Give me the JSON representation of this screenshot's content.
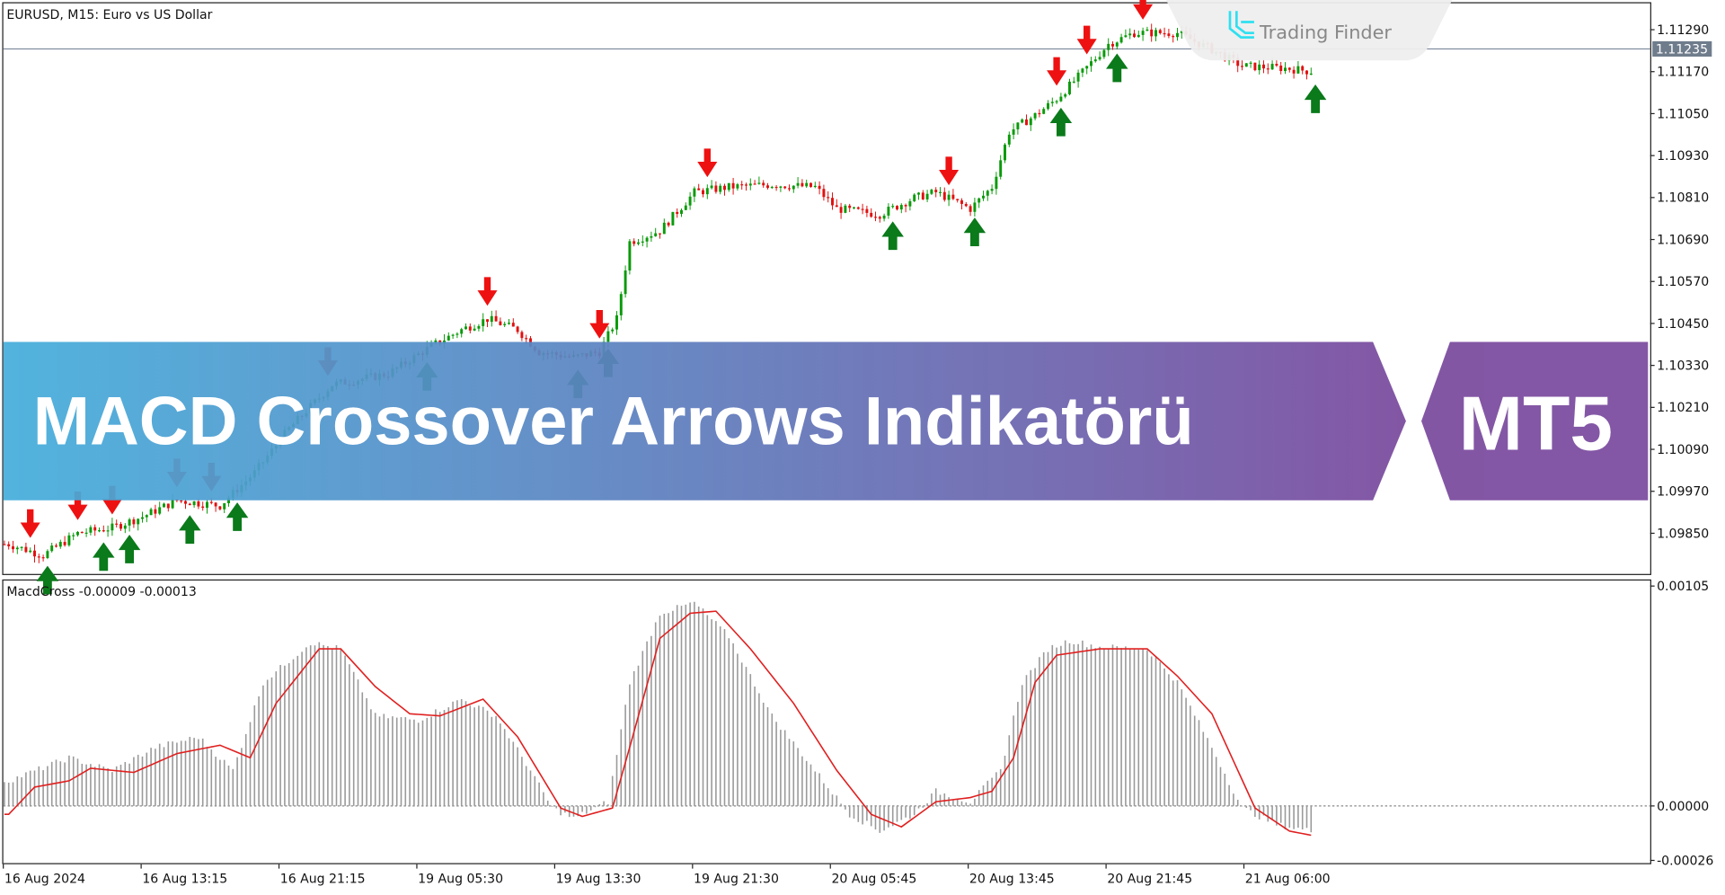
{
  "header": {
    "title": "EURUSD, M15:  Euro vs US Dollar"
  },
  "logo": {
    "text": "Trading Finder"
  },
  "banner": {
    "title": "MACD Crossover Arrows Indikatörü",
    "badge": "MT5",
    "color_left": "#45aedb",
    "color_right": "#7a4a9e"
  },
  "colors": {
    "bull": "#0a9a0a",
    "bear": "#e01010",
    "buy_arrow": "#0a7a1a",
    "sell_arrow": "#ee1111",
    "histogram": "#9a9a9a",
    "signal": "#e02020",
    "price_line": "#7a869a"
  },
  "chart_data": [
    {
      "type": "candlestick",
      "symbol": "EURUSD",
      "timeframe": "M15",
      "ylim": [
        1.0978,
        1.1135
      ],
      "yticks": [
        "1.11290",
        "1.11170",
        "1.11050",
        "1.10930",
        "1.10810",
        "1.10690",
        "1.10570",
        "1.10450",
        "1.10330",
        "1.10210",
        "1.10090",
        "1.09970",
        "1.09850"
      ],
      "current_price": "1.11235",
      "xticks": [
        "16 Aug 2024",
        "16 Aug 13:15",
        "16 Aug 21:15",
        "19 Aug 05:30",
        "19 Aug 13:30",
        "19 Aug 21:30",
        "20 Aug 05:45",
        "20 Aug 13:45",
        "20 Aug 21:45",
        "21 Aug 06:00"
      ],
      "close_path": [
        [
          1,
          1.09819
        ],
        [
          9,
          1.09787
        ],
        [
          17,
          1.0985
        ],
        [
          25,
          1.09866
        ],
        [
          32,
          1.09897
        ],
        [
          40,
          1.09944
        ],
        [
          50,
          1.09929
        ],
        [
          58,
          1.10023
        ],
        [
          66,
          1.10149
        ],
        [
          76,
          1.10275
        ],
        [
          89,
          1.10306
        ],
        [
          99,
          1.10385
        ],
        [
          106,
          1.10432
        ],
        [
          112,
          1.10463
        ],
        [
          119,
          1.10432
        ],
        [
          124,
          1.10369
        ],
        [
          132,
          1.10353
        ],
        [
          138,
          1.10369
        ],
        [
          142,
          1.10463
        ],
        [
          145,
          1.10683
        ],
        [
          152,
          1.10715
        ],
        [
          160,
          1.10825
        ],
        [
          168,
          1.1084
        ],
        [
          178,
          1.10847
        ],
        [
          188,
          1.1084
        ],
        [
          193,
          1.10778
        ],
        [
          203,
          1.10762
        ],
        [
          211,
          1.10809
        ],
        [
          216,
          1.10825
        ],
        [
          224,
          1.10778
        ],
        [
          229,
          1.1084
        ],
        [
          233,
          1.10998
        ],
        [
          239,
          1.11045
        ],
        [
          244,
          1.11092
        ],
        [
          249,
          1.11155
        ],
        [
          256,
          1.11249
        ],
        [
          262,
          1.11281
        ],
        [
          272,
          1.11281
        ],
        [
          280,
          1.11233
        ],
        [
          287,
          1.11186
        ],
        [
          297,
          1.1118
        ],
        [
          303,
          1.11171
        ]
      ],
      "arrows": [
        {
          "bar": 6,
          "type": "sell"
        },
        {
          "bar": 17,
          "type": "sell"
        },
        {
          "bar": 25,
          "type": "sell"
        },
        {
          "bar": 40,
          "type": "sell"
        },
        {
          "bar": 48,
          "type": "sell"
        },
        {
          "bar": 75,
          "type": "sell"
        },
        {
          "bar": 112,
          "type": "sell"
        },
        {
          "bar": 138,
          "type": "sell"
        },
        {
          "bar": 163,
          "type": "sell"
        },
        {
          "bar": 219,
          "type": "sell"
        },
        {
          "bar": 244,
          "type": "sell"
        },
        {
          "bar": 251,
          "type": "sell"
        },
        {
          "bar": 264,
          "type": "sell"
        },
        {
          "bar": 10,
          "type": "buy"
        },
        {
          "bar": 23,
          "type": "buy"
        },
        {
          "bar": 29,
          "type": "buy"
        },
        {
          "bar": 43,
          "type": "buy"
        },
        {
          "bar": 54,
          "type": "buy"
        },
        {
          "bar": 98,
          "type": "buy"
        },
        {
          "bar": 133,
          "type": "buy"
        },
        {
          "bar": 140,
          "type": "buy"
        },
        {
          "bar": 206,
          "type": "buy"
        },
        {
          "bar": 225,
          "type": "buy"
        },
        {
          "bar": 245,
          "type": "buy"
        },
        {
          "bar": 258,
          "type": "buy"
        },
        {
          "bar": 304,
          "type": "buy"
        }
      ]
    },
    {
      "type": "bar+line",
      "name": "MacdCross",
      "label": "MacdCross -0.00009 -0.00013",
      "ylim": [
        -0.00026,
        0.00105
      ],
      "yticks": [
        "0.00105",
        "0.00000",
        "-0.00026"
      ],
      "histogram_path": [
        [
          1,
          0.00012
        ],
        [
          15,
          0.00023
        ],
        [
          25,
          0.00017
        ],
        [
          35,
          0.00028
        ],
        [
          45,
          0.00033
        ],
        [
          53,
          0.00017
        ],
        [
          60,
          0.00059
        ],
        [
          71,
          0.00078
        ],
        [
          78,
          0.00075
        ],
        [
          86,
          0.00043
        ],
        [
          96,
          0.00041
        ],
        [
          106,
          0.00051
        ],
        [
          114,
          0.00043
        ],
        [
          122,
          0.00017
        ],
        [
          127,
          -1e-05
        ],
        [
          132,
          -6e-05
        ],
        [
          140,
          2e-05
        ],
        [
          145,
          0.00059
        ],
        [
          152,
          0.00092
        ],
        [
          160,
          0.00097
        ],
        [
          168,
          0.00081
        ],
        [
          178,
          0.00043
        ],
        [
          188,
          0.00017
        ],
        [
          196,
          -4e-05
        ],
        [
          203,
          -0.00012
        ],
        [
          211,
          -4e-05
        ],
        [
          216,
          7e-05
        ],
        [
          224,
          2e-05
        ],
        [
          231,
          0.00017
        ],
        [
          236,
          0.00059
        ],
        [
          242,
          0.00075
        ],
        [
          247,
          0.00079
        ],
        [
          254,
          0.00076
        ],
        [
          265,
          0.00075
        ],
        [
          272,
          0.00059
        ],
        [
          280,
          0.00028
        ],
        [
          287,
          -1e-05
        ],
        [
          295,
          -9e-05
        ],
        [
          303,
          -0.00012
        ]
      ],
      "signal_path": [
        [
          1,
          -4e-05
        ],
        [
          7,
          9e-05
        ],
        [
          15,
          0.00012
        ],
        [
          20,
          0.00018
        ],
        [
          30,
          0.00016
        ],
        [
          40,
          0.00025
        ],
        [
          50,
          0.00029
        ],
        [
          57,
          0.00023
        ],
        [
          63,
          0.00049
        ],
        [
          73,
          0.00075
        ],
        [
          78,
          0.00075
        ],
        [
          86,
          0.00057
        ],
        [
          94,
          0.00044
        ],
        [
          101,
          0.00043
        ],
        [
          111,
          0.00051
        ],
        [
          119,
          0.00033
        ],
        [
          129,
          -1e-05
        ],
        [
          134,
          -5e-05
        ],
        [
          141,
          -1e-05
        ],
        [
          145,
          0.00028
        ],
        [
          152,
          0.0008
        ],
        [
          159,
          0.00092
        ],
        [
          165,
          0.00093
        ],
        [
          173,
          0.00075
        ],
        [
          183,
          0.00049
        ],
        [
          193,
          0.00017
        ],
        [
          201,
          -4e-05
        ],
        [
          208,
          -0.0001
        ],
        [
          216,
          2e-05
        ],
        [
          224,
          4e-05
        ],
        [
          229,
          7e-05
        ],
        [
          234,
          0.00023
        ],
        [
          239,
          0.00059
        ],
        [
          244,
          0.00072
        ],
        [
          254,
          0.00075
        ],
        [
          265,
          0.00075
        ],
        [
          272,
          0.00062
        ],
        [
          280,
          0.00044
        ],
        [
          290,
          -1e-05
        ],
        [
          298,
          -0.00012
        ],
        [
          303,
          -0.00014
        ]
      ]
    }
  ]
}
